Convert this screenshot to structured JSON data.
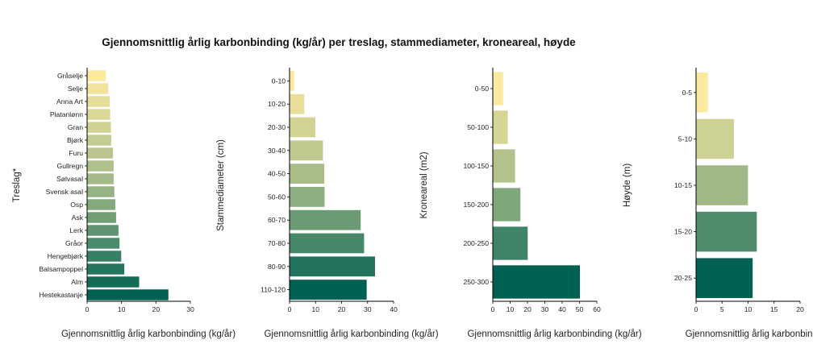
{
  "chart_data": {
    "title": "Gjennomsnittlig årlig karbonbinding (kg/år) per treslag, stammediameter, kroneareal, høyde",
    "colors": {
      "palette_start": "#FBE9A0",
      "palette_mid": "#9FB886",
      "palette_end": "#006152",
      "axis": "#000000",
      "text": "#222222"
    },
    "panels": [
      {
        "type": "bar",
        "orientation": "horizontal",
        "ylabel": "Treslag*",
        "xlabel": "Gjennomsnittlig årlig karbonbinding (kg/år)",
        "xlim": [
          0,
          30
        ],
        "xticks": [
          0,
          10,
          20,
          30
        ],
        "categories": [
          "Gråselje",
          "Selje",
          "Anna Art",
          "Platanlønn",
          "Gran",
          "Bjørk",
          "Furu",
          "Gullregn",
          "Sølvasal",
          "Svensk asal",
          "Osp",
          "Ask",
          "Lerk",
          "Gråor",
          "Hengebjørk",
          "Balsampoppel",
          "Alm",
          "Hestekastanje"
        ],
        "values": [
          5.3,
          6.0,
          6.5,
          6.6,
          6.8,
          6.9,
          7.4,
          7.6,
          7.6,
          7.8,
          8.1,
          8.3,
          9.0,
          9.3,
          9.8,
          10.7,
          15.0,
          23.5
        ]
      },
      {
        "type": "bar",
        "orientation": "horizontal",
        "ylabel": "Stammediameter (cm)",
        "xlabel": "Gjennomsnittlig årlig karbonbinding (kg/år)",
        "xlim": [
          0,
          40
        ],
        "xticks": [
          0,
          10,
          20,
          30,
          40
        ],
        "categories": [
          "0-10",
          "10-20",
          "20-30",
          "30-40",
          "40-50",
          "50-60",
          "60-70",
          "70-80",
          "80-90",
          "110-120"
        ],
        "values": [
          1.6,
          5.5,
          9.8,
          12.7,
          13.2,
          13.3,
          27.2,
          28.5,
          32.7,
          29.5
        ]
      },
      {
        "type": "bar",
        "orientation": "horizontal",
        "ylabel": "Kroneareal (m2)",
        "xlabel": "Gjennomsnittlig årlig karbonbinding (kg/år)",
        "xlim": [
          0,
          60
        ],
        "xticks": [
          0,
          10,
          20,
          30,
          40,
          50,
          60
        ],
        "categories": [
          "0-50",
          "50-100",
          "100-150",
          "150-200",
          "200-250",
          "250-300"
        ],
        "values": [
          5.7,
          8.4,
          12.6,
          15.7,
          19.9,
          50.0
        ]
      },
      {
        "type": "bar",
        "orientation": "horizontal",
        "ylabel": "Høyde (m)",
        "xlabel": "Gjennomsnittlig årlig karbonbinding",
        "xlim": [
          0,
          20
        ],
        "xticks": [
          0,
          5,
          10,
          15,
          20
        ],
        "categories": [
          "0-5",
          "5-10",
          "10-15",
          "15-20",
          "20-25"
        ],
        "values": [
          2.2,
          7.2,
          9.9,
          11.6,
          10.8
        ]
      }
    ]
  }
}
